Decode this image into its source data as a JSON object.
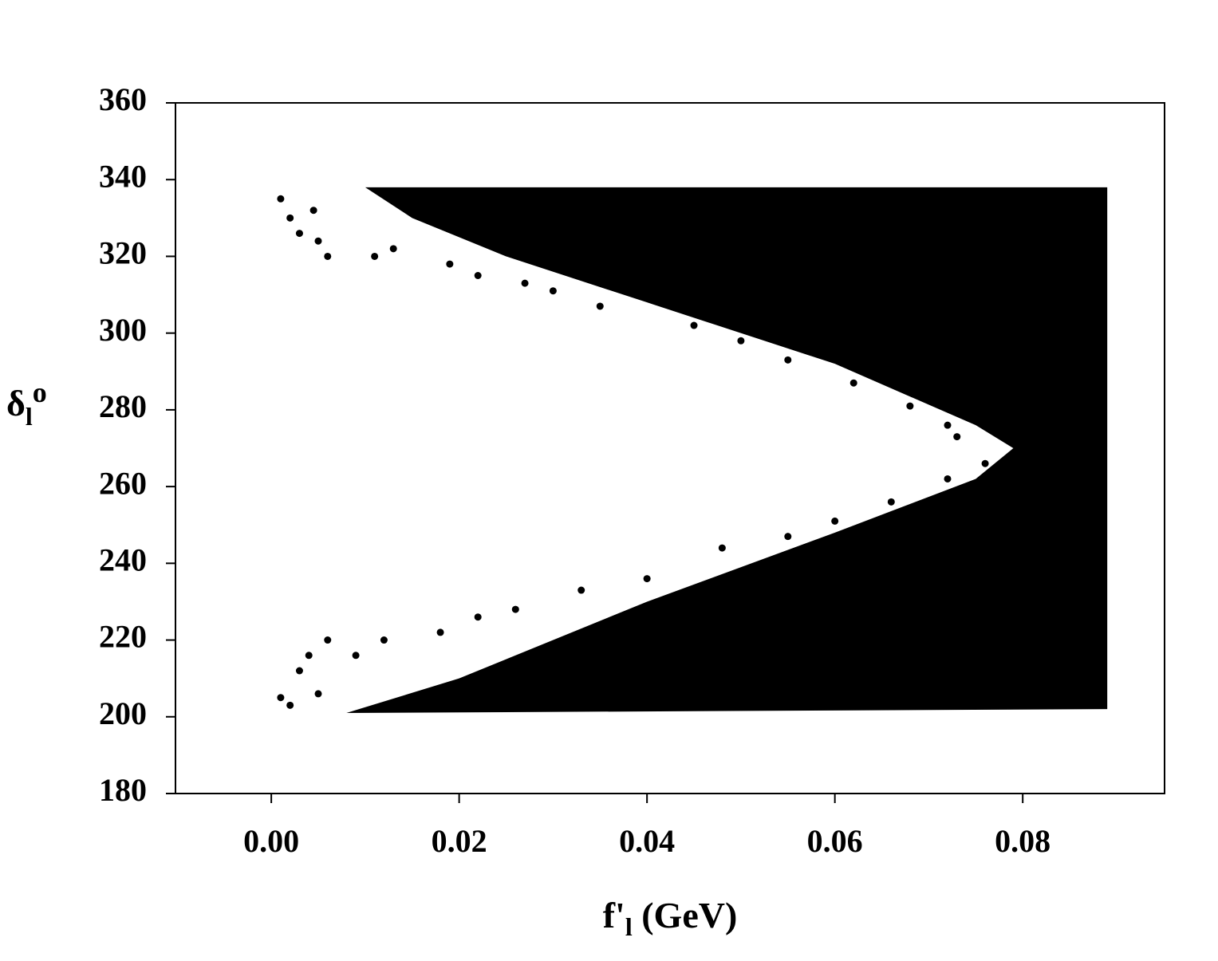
{
  "chart_data": {
    "type": "scatter",
    "xlabel": {
      "main": "f'",
      "sub": "l",
      "rest": " (GeV)"
    },
    "ylabel": {
      "main": "δ",
      "sub": "l",
      "sup": "o"
    },
    "xlim": [
      -0.0102,
      0.0951
    ],
    "ylim": [
      180,
      360
    ],
    "xticks": [
      {
        "value": 0,
        "label": "0.00"
      },
      {
        "value": 0.02,
        "label": "0.02"
      },
      {
        "value": 0.04,
        "label": "0.04"
      },
      {
        "value": 0.06,
        "label": "0.06"
      },
      {
        "value": 0.08,
        "label": "0.08"
      }
    ],
    "yticks": [
      180,
      200,
      220,
      240,
      260,
      280,
      300,
      320,
      340,
      360
    ],
    "color": "#000000",
    "region": {
      "x": [
        0.01,
        0.089,
        0.089,
        0.008,
        0.02,
        0.04,
        0.06,
        0.075,
        0.079,
        0.075,
        0.06,
        0.04,
        0.025,
        0.015
      ],
      "y": [
        338,
        338,
        202,
        201,
        210,
        230,
        248,
        262,
        270,
        276,
        292,
        308,
        320,
        330
      ]
    },
    "points": {
      "x": [
        0.001,
        0.002,
        0.003,
        0.005,
        0.006,
        0.0045,
        0.011,
        0.013,
        0.019,
        0.022,
        0.027,
        0.03,
        0.035,
        0.045,
        0.05,
        0.055,
        0.062,
        0.068,
        0.072,
        0.073,
        0.076,
        0.072,
        0.066,
        0.06,
        0.055,
        0.048,
        0.04,
        0.033,
        0.026,
        0.022,
        0.018,
        0.012,
        0.009,
        0.006,
        0.004,
        0.003,
        0.001,
        0.002,
        0.005
      ],
      "y": [
        335,
        330,
        326,
        324,
        320,
        332,
        320,
        322,
        318,
        315,
        313,
        311,
        307,
        302,
        298,
        293,
        287,
        281,
        276,
        273,
        266,
        262,
        256,
        251,
        247,
        244,
        236,
        233,
        228,
        226,
        222,
        220,
        216,
        220,
        216,
        212,
        205,
        203,
        206
      ]
    }
  }
}
